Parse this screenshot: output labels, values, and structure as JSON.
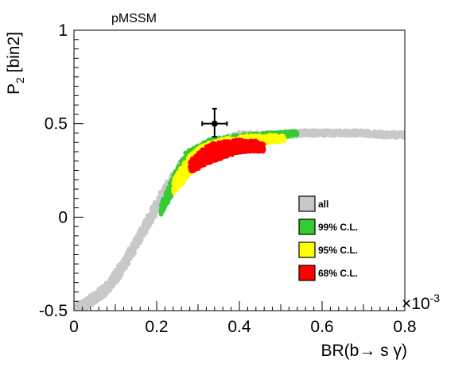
{
  "chart_data": {
    "type": "scatter",
    "title": "pMSSM",
    "xlabel": "BR(b→ s γ)",
    "ylabel": "P",
    "ylabel_subscript": "2",
    "ylabel_suffix": " [bin2]",
    "x_exponent_base": "×10",
    "x_exponent_power": "-3",
    "xlim": [
      0,
      0.8
    ],
    "ylim": [
      -0.5,
      1
    ],
    "x_ticks": [
      {
        "value": 0,
        "label": "0"
      },
      {
        "value": 0.2,
        "label": "0.2"
      },
      {
        "value": 0.4,
        "label": "0.4"
      },
      {
        "value": 0.6,
        "label": "0.6"
      },
      {
        "value": 0.8,
        "label": "0.8"
      }
    ],
    "y_ticks": [
      {
        "value": -0.5,
        "label": "-0.5"
      },
      {
        "value": 0,
        "label": "0"
      },
      {
        "value": 0.5,
        "label": "0.5"
      },
      {
        "value": 1,
        "label": "1"
      }
    ],
    "legend": {
      "position": "center-right",
      "entries": [
        {
          "label": "all",
          "color": "#c8c8c8"
        },
        {
          "label": "99% C.L.",
          "color": "#33cc33"
        },
        {
          "label": "95% C.L.",
          "color": "#ffff00"
        },
        {
          "label": "68% C.L.",
          "color": "#ff0000"
        }
      ]
    },
    "measurement": {
      "x": 0.34,
      "y": 0.5,
      "x_err": 0.03,
      "y_err_up": 0.08,
      "y_err_down": 0.07,
      "color": "#000000"
    },
    "regions": [
      {
        "name": "all",
        "color": "#c8c8c8",
        "band": [
          [
            0.0,
            -0.5,
            0.03
          ],
          [
            0.02,
            -0.48,
            0.03
          ],
          [
            0.05,
            -0.43,
            0.03
          ],
          [
            0.08,
            -0.38,
            0.035
          ],
          [
            0.11,
            -0.29,
            0.04
          ],
          [
            0.14,
            -0.18,
            0.04
          ],
          [
            0.17,
            -0.06,
            0.04
          ],
          [
            0.2,
            0.06,
            0.045
          ],
          [
            0.23,
            0.16,
            0.05
          ],
          [
            0.26,
            0.25,
            0.06
          ],
          [
            0.29,
            0.31,
            0.06
          ],
          [
            0.32,
            0.36,
            0.05
          ],
          [
            0.36,
            0.39,
            0.04
          ],
          [
            0.4,
            0.42,
            0.035
          ],
          [
            0.45,
            0.43,
            0.025
          ],
          [
            0.5,
            0.44,
            0.02
          ],
          [
            0.55,
            0.45,
            0.015
          ],
          [
            0.6,
            0.45,
            0.015
          ],
          [
            0.65,
            0.45,
            0.015
          ],
          [
            0.7,
            0.45,
            0.015
          ],
          [
            0.75,
            0.44,
            0.015
          ],
          [
            0.8,
            0.44,
            0.015
          ]
        ]
      },
      {
        "name": "99% C.L.",
        "color": "#33cc33",
        "band": [
          [
            0.21,
            0.04,
            0.03
          ],
          [
            0.23,
            0.13,
            0.045
          ],
          [
            0.25,
            0.22,
            0.05
          ],
          [
            0.27,
            0.29,
            0.06
          ],
          [
            0.3,
            0.34,
            0.05
          ],
          [
            0.33,
            0.38,
            0.04
          ],
          [
            0.37,
            0.4,
            0.03
          ],
          [
            0.41,
            0.42,
            0.025
          ],
          [
            0.45,
            0.43,
            0.02
          ],
          [
            0.5,
            0.44,
            0.015
          ],
          [
            0.54,
            0.45,
            0.012
          ]
        ]
      },
      {
        "name": "95% C.L.",
        "color": "#ffff00",
        "band": [
          [
            0.24,
            0.16,
            0.04
          ],
          [
            0.26,
            0.22,
            0.05
          ],
          [
            0.28,
            0.28,
            0.055
          ],
          [
            0.3,
            0.32,
            0.05
          ],
          [
            0.33,
            0.36,
            0.045
          ],
          [
            0.36,
            0.38,
            0.04
          ],
          [
            0.4,
            0.4,
            0.035
          ],
          [
            0.44,
            0.41,
            0.03
          ],
          [
            0.48,
            0.42,
            0.02
          ],
          [
            0.51,
            0.42,
            0.015
          ]
        ]
      },
      {
        "name": "68% C.L.",
        "color": "#ff0000",
        "band": [
          [
            0.28,
            0.27,
            0.03
          ],
          [
            0.3,
            0.3,
            0.045
          ],
          [
            0.32,
            0.33,
            0.05
          ],
          [
            0.34,
            0.35,
            0.05
          ],
          [
            0.36,
            0.36,
            0.045
          ],
          [
            0.38,
            0.37,
            0.04
          ],
          [
            0.4,
            0.38,
            0.035
          ],
          [
            0.42,
            0.38,
            0.03
          ],
          [
            0.44,
            0.38,
            0.03
          ],
          [
            0.46,
            0.37,
            0.02
          ]
        ]
      }
    ]
  }
}
